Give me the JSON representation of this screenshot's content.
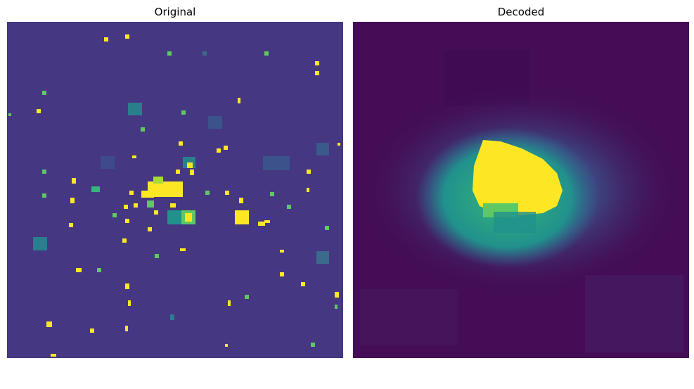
{
  "figure": {
    "panels": [
      {
        "id": "original",
        "title": "Original"
      },
      {
        "id": "decoded",
        "title": "Decoded"
      }
    ]
  },
  "colors": {
    "background_original": "#453781",
    "background_decoded": "#440d55",
    "bright_yellow": "#fde725",
    "teal": "#2a7f8e",
    "mid_teal": "#21918c",
    "blue": "#3b528b",
    "light_green": "#5ec962"
  },
  "colormap": "viridis"
}
